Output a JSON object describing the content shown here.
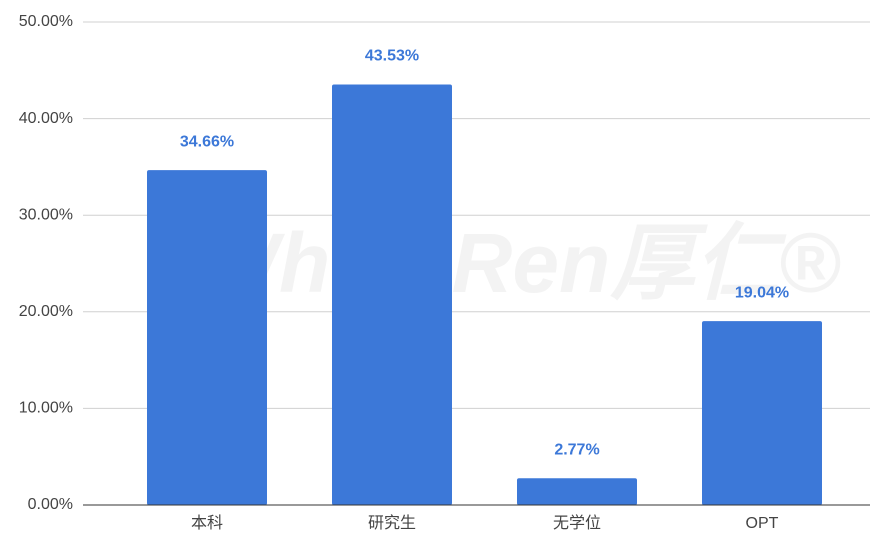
{
  "chart_data": {
    "type": "bar",
    "watermark": "WholeRen厚仁®",
    "categories": [
      "本科",
      "研究生",
      "无学位",
      "OPT"
    ],
    "values": [
      34.66,
      43.53,
      2.77,
      19.04
    ],
    "value_labels": [
      "34.66%",
      "43.53%",
      "2.77%",
      "19.04%"
    ],
    "color": "#3c78d8",
    "ylim": [
      0,
      50
    ],
    "yticks": [
      {
        "value": 0,
        "label": "0.00%"
      },
      {
        "value": 10,
        "label": "10.00%"
      },
      {
        "value": 20,
        "label": "20.00%"
      },
      {
        "value": 30,
        "label": "30.00%"
      },
      {
        "value": 40,
        "label": "40.00%"
      },
      {
        "value": 50,
        "label": "50.00%"
      }
    ],
    "grid": true
  }
}
